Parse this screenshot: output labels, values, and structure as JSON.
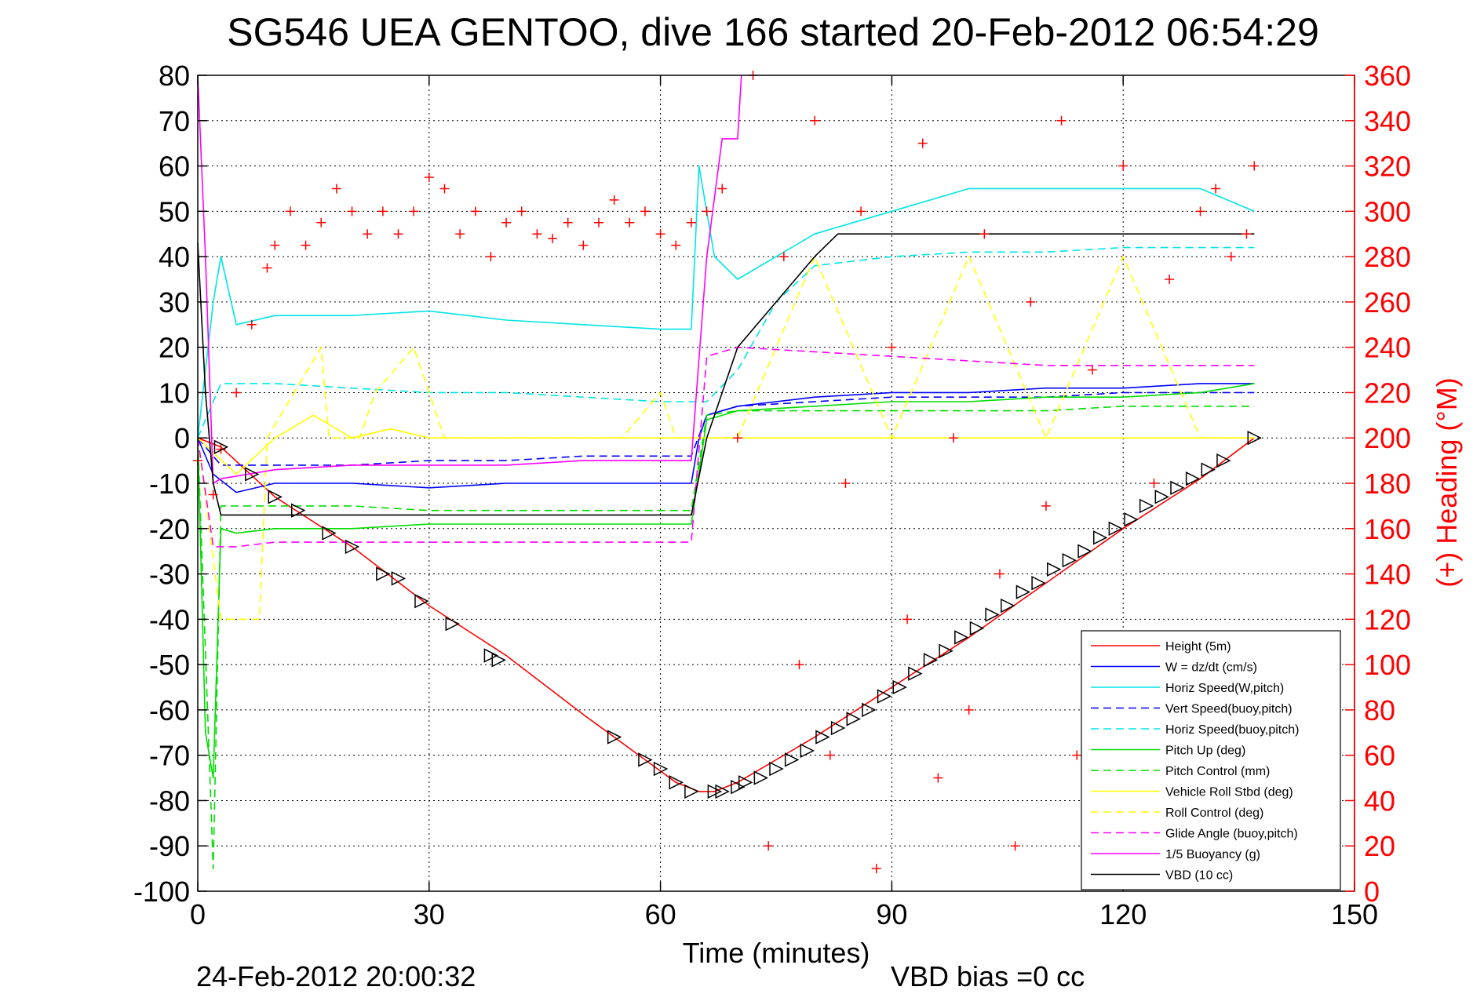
{
  "chart_data": {
    "type": "line",
    "title": "SG546 UEA GENTOO, dive 166 started 20-Feb-2012 06:54:29",
    "xlabel": "Time (minutes)",
    "ylabel": "",
    "ylabel_right": "(+) Heading (°M)",
    "xlim": [
      0,
      150
    ],
    "ylim": [
      -100,
      80
    ],
    "ylim_right": [
      0,
      360
    ],
    "x_ticks": [
      "0",
      "30",
      "60",
      "90",
      "120",
      "150"
    ],
    "y_ticks": [
      "-100",
      "-90",
      "-80",
      "-70",
      "-60",
      "-50",
      "-40",
      "-30",
      "-20",
      "-10",
      "0",
      "10",
      "20",
      "30",
      "40",
      "50",
      "60",
      "70",
      "80"
    ],
    "y_ticks_right": [
      "0",
      "20",
      "40",
      "60",
      "80",
      "100",
      "120",
      "140",
      "160",
      "180",
      "200",
      "220",
      "240",
      "260",
      "280",
      "300",
      "320",
      "340",
      "360"
    ],
    "grid": true,
    "legend_position": "bottom-right",
    "footer_left": "24-Feb-2012 20:00:32",
    "footer_right": "VBD bias =0 cc",
    "colors": {
      "red": "#ff0000",
      "blue": "#0000ff",
      "cyan": "#00e5e5",
      "green": "#00dd00",
      "yellow": "#ffff00",
      "magenta": "#ff00ff",
      "black": "#000000"
    },
    "series": [
      {
        "name": "Height (5m)",
        "color": "#ff0000",
        "style": "solid",
        "x": [
          0,
          3,
          10,
          20,
          30,
          40,
          50,
          58,
          62,
          65,
          67,
          70,
          80,
          90,
          100,
          110,
          120,
          130,
          137
        ],
        "y": [
          0,
          -2,
          -13,
          -24,
          -37,
          -48,
          -61,
          -71,
          -76,
          -78,
          -78,
          -76,
          -66,
          -55,
          -44,
          -32,
          -20,
          -9,
          0
        ]
      },
      {
        "name": "W = dz/dt (cm/s)",
        "color": "#0000ff",
        "style": "solid",
        "x": [
          0,
          2,
          5,
          10,
          20,
          30,
          40,
          50,
          60,
          64,
          65,
          66,
          70,
          80,
          90,
          100,
          110,
          120,
          130,
          137
        ],
        "y": [
          0,
          -8,
          -12,
          -10,
          -10,
          -11,
          -10,
          -10,
          -10,
          -10,
          0,
          5,
          7,
          9,
          10,
          10,
          11,
          11,
          12,
          12
        ]
      },
      {
        "name": "Horiz Speed(W,pitch)",
        "color": "#00e5e5",
        "style": "solid",
        "x": [
          0,
          2,
          3,
          5,
          10,
          20,
          30,
          40,
          50,
          60,
          64,
          65,
          67,
          70,
          75,
          80,
          90,
          100,
          110,
          120,
          130,
          137
        ],
        "y": [
          0,
          30,
          40,
          25,
          27,
          27,
          28,
          26,
          25,
          24,
          24,
          60,
          40,
          35,
          40,
          45,
          50,
          55,
          55,
          55,
          55,
          50
        ]
      },
      {
        "name": "Vert Speed(buoy,pitch)",
        "color": "#0000ff",
        "style": "dashed",
        "x": [
          0,
          3,
          10,
          20,
          30,
          40,
          50,
          60,
          64,
          66,
          70,
          80,
          90,
          100,
          110,
          120,
          130,
          137
        ],
        "y": [
          0,
          -6,
          -6,
          -6,
          -5,
          -5,
          -4,
          -4,
          -4,
          5,
          7,
          8,
          9,
          9,
          9,
          10,
          10,
          10
        ]
      },
      {
        "name": "Horiz Speed(buoy,pitch)",
        "color": "#00e5e5",
        "style": "dashed",
        "x": [
          0,
          3,
          10,
          20,
          30,
          40,
          50,
          60,
          64,
          66,
          70,
          75,
          80,
          90,
          100,
          110,
          120,
          130,
          137
        ],
        "y": [
          0,
          12,
          12,
          11,
          10,
          10,
          9,
          8,
          8,
          8,
          15,
          30,
          38,
          40,
          41,
          41,
          42,
          42,
          42
        ]
      },
      {
        "name": "Pitch Up (deg)",
        "color": "#00dd00",
        "style": "solid",
        "x": [
          0,
          1,
          2,
          3,
          5,
          10,
          20,
          30,
          40,
          50,
          60,
          64,
          66,
          70,
          80,
          90,
          100,
          110,
          120,
          130,
          137
        ],
        "y": [
          0,
          -65,
          -75,
          -20,
          -21,
          -20,
          -20,
          -19,
          -19,
          -19,
          -19,
          -19,
          4,
          6,
          7,
          8,
          8,
          9,
          9,
          10,
          12
        ]
      },
      {
        "name": "Pitch Control (mm)",
        "color": "#00dd00",
        "style": "dashed",
        "x": [
          0,
          2,
          3,
          10,
          20,
          30,
          40,
          50,
          60,
          64,
          66,
          70,
          80,
          90,
          100,
          110,
          120,
          130,
          137
        ],
        "y": [
          0,
          -95,
          -15,
          -15,
          -15,
          -16,
          -16,
          -16,
          -16,
          -16,
          5,
          6,
          6,
          6,
          6,
          6,
          7,
          7,
          7
        ]
      },
      {
        "name": "Vehicle Roll Stbd (deg)",
        "color": "#ffff00",
        "style": "solid",
        "x": [
          0,
          5,
          10,
          15,
          20,
          25,
          30,
          35,
          40,
          50,
          60,
          65,
          70,
          80,
          90,
          100,
          110,
          120,
          130,
          137
        ],
        "y": [
          0,
          -8,
          0,
          5,
          0,
          2,
          0,
          0,
          0,
          0,
          0,
          0,
          0,
          0,
          0,
          0,
          0,
          0,
          0,
          0
        ]
      },
      {
        "name": "Roll Control (deg)",
        "color": "#ffff00",
        "style": "dashed",
        "x": [
          0,
          3,
          8,
          9,
          16,
          17,
          21,
          23,
          28,
          32,
          35,
          40,
          50,
          55,
          60,
          62,
          64,
          66,
          70,
          80,
          90,
          100,
          110,
          120,
          130,
          137
        ],
        "y": [
          0,
          -40,
          -40,
          0,
          20,
          0,
          0,
          10,
          20,
          0,
          0,
          0,
          0,
          0,
          10,
          0,
          0,
          0,
          0,
          40,
          0,
          40,
          0,
          40,
          0,
          0
        ]
      },
      {
        "name": "Glide Angle (buoy,pitch)",
        "color": "#ff00ff",
        "style": "dashed",
        "x": [
          0,
          2,
          3,
          5,
          10,
          20,
          30,
          40,
          50,
          60,
          64,
          66,
          70,
          80,
          90,
          100,
          110,
          120,
          130,
          137
        ],
        "y": [
          0,
          -24,
          -24,
          -24,
          -23,
          -23,
          -23,
          -23,
          -23,
          -23,
          -23,
          18,
          20,
          19,
          18,
          17,
          16,
          16,
          16,
          16
        ]
      },
      {
        "name": "1/5 Buoyancy (g)",
        "color": "#ff00ff",
        "style": "solid",
        "x": [
          0,
          1,
          2,
          3,
          10,
          20,
          30,
          40,
          50,
          60,
          64,
          66,
          68,
          70,
          70.5
        ],
        "y": [
          80,
          40,
          -10,
          -9,
          -7,
          -6,
          -6,
          -6,
          -5,
          -5,
          -5,
          40,
          66,
          66,
          80
        ]
      },
      {
        "name": "VBD (10 cc)",
        "color": "#000000",
        "style": "solid",
        "x": [
          0,
          1,
          2,
          3,
          10,
          20,
          30,
          40,
          50,
          60,
          64,
          66,
          70,
          75,
          80,
          83,
          90,
          100,
          110,
          120,
          130,
          137
        ],
        "y": [
          43,
          10,
          -10,
          -17,
          -17,
          -17,
          -17,
          -17,
          -17,
          -17,
          -17,
          0,
          20,
          30,
          40,
          45,
          45,
          45,
          45,
          45,
          45,
          45
        ]
      }
    ],
    "heading_series": {
      "name": "(+) Heading (°M)",
      "axis": "right",
      "color": "#ff0000",
      "marker": "+",
      "x": [
        0,
        2,
        3,
        5,
        7,
        9,
        10,
        12,
        14,
        16,
        18,
        20,
        22,
        24,
        26,
        28,
        30,
        32,
        34,
        36,
        38,
        40,
        42,
        44,
        46,
        48,
        50,
        52,
        54,
        56,
        58,
        60,
        62,
        64,
        66,
        68,
        70,
        72,
        74,
        76,
        78,
        80,
        82,
        84,
        86,
        88,
        90,
        92,
        94,
        96,
        98,
        100,
        102,
        104,
        106,
        108,
        110,
        112,
        114,
        116,
        118,
        120,
        122,
        124,
        126,
        128,
        130,
        132,
        134,
        136,
        137
      ],
      "y": [
        190,
        175,
        195,
        220,
        250,
        275,
        285,
        300,
        285,
        295,
        310,
        300,
        290,
        300,
        290,
        300,
        315,
        310,
        290,
        300,
        280,
        295,
        300,
        290,
        288,
        295,
        285,
        295,
        305,
        295,
        300,
        290,
        285,
        295,
        300,
        310,
        200,
        360,
        20,
        280,
        100,
        340,
        60,
        180,
        300,
        10,
        240,
        120,
        330,
        50,
        200,
        80,
        290,
        140,
        20,
        260,
        170,
        340,
        60,
        230,
        110,
        320,
        30,
        180,
        270,
        90,
        300,
        310,
        280,
        290,
        320
      ]
    },
    "markers_series": {
      "marker": "triangle",
      "color": "#000000",
      "x": [
        3,
        7,
        10,
        13,
        17,
        20,
        24,
        26,
        29,
        33,
        38,
        39,
        54,
        58,
        60,
        62,
        64,
        67,
        68,
        70,
        71,
        73,
        75,
        77,
        79,
        81,
        83,
        85,
        87,
        89,
        91,
        93,
        95,
        97,
        99,
        101,
        103,
        105,
        107,
        109,
        111,
        113,
        115,
        117,
        119,
        121,
        123,
        125,
        127,
        129,
        131,
        133,
        137
      ],
      "y": [
        -2,
        -8,
        -13,
        -16,
        -21,
        -24,
        -30,
        -31,
        -36,
        -41,
        -48,
        -49,
        -66,
        -71,
        -73,
        -76,
        -78,
        -78,
        -78,
        -77,
        -76,
        -75,
        -73,
        -71,
        -69,
        -66,
        -64,
        -62,
        -60,
        -57,
        -55,
        -52,
        -49,
        -47,
        -44,
        -42,
        -39,
        -37,
        -34,
        -32,
        -29,
        -27,
        -25,
        -22,
        -20,
        -18,
        -15,
        -13,
        -11,
        -9,
        -7,
        -5,
        0
      ]
    }
  }
}
